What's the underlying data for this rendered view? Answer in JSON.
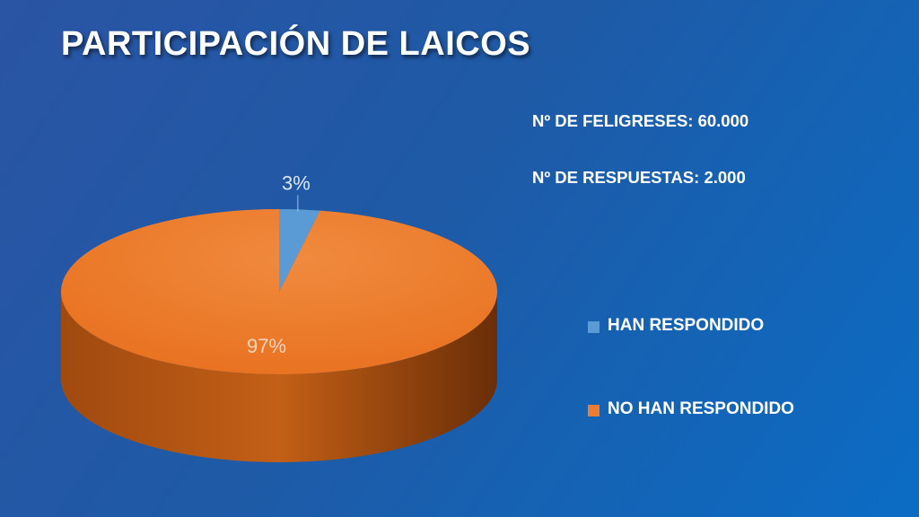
{
  "slide": {
    "title": "PARTICIPACIÓN DE LAICOS",
    "info": {
      "feligreses": "Nº DE FELIGRESES: 60.000",
      "respuestas": "Nº DE RESPUESTAS: 2.000"
    }
  },
  "chart_data": {
    "type": "pie",
    "style": "3d",
    "legend_position": "right",
    "categories": [
      "HAN RESPONDIDO",
      "NO HAN RESPONDIDO"
    ],
    "values": [
      3,
      97
    ],
    "labels": [
      "3%",
      "97%"
    ],
    "colors": [
      "#5b9bd5",
      "#ed7d31"
    ]
  }
}
